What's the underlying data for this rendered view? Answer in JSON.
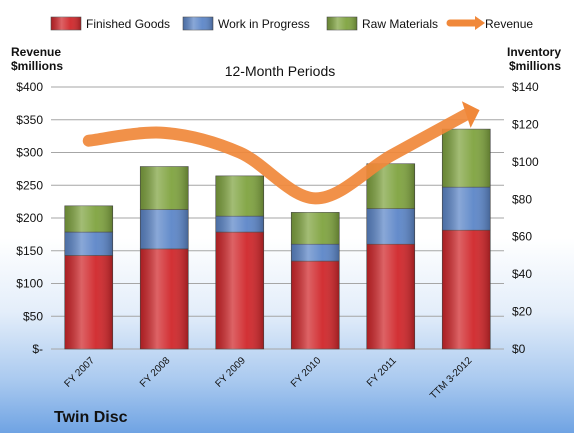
{
  "chart_data": {
    "type": "bar",
    "stacked": true,
    "title": "12-Month Periods",
    "company": "Twin Disc",
    "categories": [
      "FY 2007",
      "FY 2008",
      "FY 2009",
      "FY 2010",
      "FY 2011",
      "TTM 3-2012"
    ],
    "left_axis": {
      "title_line1": "Revenue",
      "title_line2": "$millions",
      "ylim": [
        0,
        400
      ],
      "ticks": [
        0,
        50,
        100,
        150,
        200,
        250,
        300,
        350,
        400
      ],
      "tick_labels": [
        "$-",
        "$50",
        "$100",
        "$150",
        "$200",
        "$250",
        "$300",
        "$350",
        "$400"
      ]
    },
    "right_axis": {
      "title_line1": "Inventory",
      "title_line2": "$millions",
      "ylim": [
        0,
        140
      ],
      "ticks": [
        0,
        20,
        40,
        60,
        80,
        100,
        120,
        140
      ],
      "tick_labels": [
        "$0",
        "$20",
        "$40",
        "$60",
        "$80",
        "$100",
        "$120",
        "$140"
      ]
    },
    "series": [
      {
        "name": "Finished Goods",
        "axis": "right",
        "color": "#d0262a",
        "values": [
          50,
          53.5,
          62.5,
          47,
          56,
          63.5
        ]
      },
      {
        "name": "Work in Progress",
        "axis": "right",
        "color": "#5c86c8",
        "values": [
          12.5,
          21,
          8.5,
          9,
          19,
          23
        ]
      },
      {
        "name": "Raw Materials",
        "axis": "right",
        "color": "#7fa33f",
        "values": [
          14,
          23,
          21.5,
          17,
          24,
          31
        ]
      },
      {
        "name": "Revenue",
        "axis": "left",
        "type": "line",
        "color": "#f0883a",
        "values": [
          318,
          330,
          300,
          230,
          295,
          358
        ]
      }
    ],
    "legend_position": "top",
    "grid": true
  }
}
